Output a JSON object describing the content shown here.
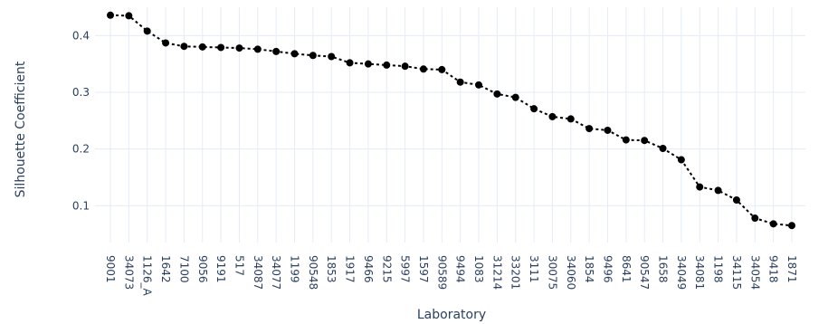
{
  "chart_data": {
    "type": "line",
    "xlabel": "Laboratory",
    "ylabel": "Silhouette Coefficient",
    "ylim": [
      0.035,
      0.45
    ],
    "yticks": [
      0.1,
      0.2,
      0.3,
      0.4
    ],
    "ytick_labels": [
      "0.1",
      "0.2",
      "0.3",
      "0.4"
    ],
    "grid": true,
    "line_style": "dotted",
    "marker": "circle",
    "series_color": "#000000",
    "categories": [
      "9001",
      "34073",
      "1126_A",
      "1642",
      "7100",
      "9056",
      "9191",
      "517",
      "34087",
      "34077",
      "1199",
      "90548",
      "1853",
      "1917",
      "9466",
      "9215",
      "5997",
      "1597",
      "90589",
      "9494",
      "1083",
      "31214",
      "33201",
      "3111",
      "30075",
      "34060",
      "1854",
      "9496",
      "8641",
      "90547",
      "1658",
      "34049",
      "34081",
      "1198",
      "34115",
      "34054",
      "9418",
      "1871"
    ],
    "values": [
      0.436,
      0.435,
      0.408,
      0.387,
      0.381,
      0.38,
      0.379,
      0.378,
      0.376,
      0.372,
      0.368,
      0.365,
      0.363,
      0.352,
      0.35,
      0.348,
      0.346,
      0.341,
      0.34,
      0.318,
      0.313,
      0.297,
      0.291,
      0.271,
      0.257,
      0.253,
      0.236,
      0.233,
      0.216,
      0.215,
      0.201,
      0.181,
      0.133,
      0.127,
      0.11,
      0.078,
      0.068,
      0.065
    ]
  }
}
